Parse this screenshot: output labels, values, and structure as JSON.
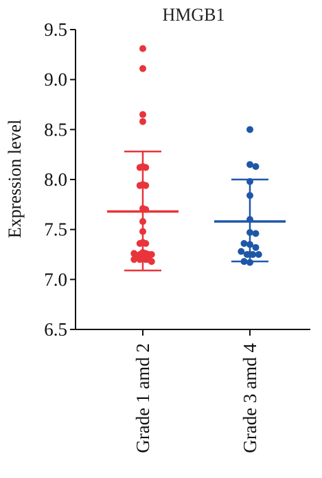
{
  "chart_data": {
    "type": "scatter",
    "title": "HMGB1",
    "xlabel": "",
    "ylabel": "Expression level",
    "ylim": [
      6.5,
      9.5
    ],
    "yticks": [
      "6.5",
      "7.0",
      "7.5",
      "8.0",
      "8.5",
      "9.0",
      "9.5"
    ],
    "categories": [
      "Grade 1 amd 2",
      "Grade 3 amd 4"
    ],
    "grid": false,
    "series": [
      {
        "category": "Grade 1 amd 2",
        "color": "#e8343a",
        "mean": 7.68,
        "sd_upper": 8.28,
        "sd_lower": 7.09,
        "points": [
          {
            "x": 0.0,
            "y": 9.31
          },
          {
            "x": 0.0,
            "y": 9.11
          },
          {
            "x": 0.0,
            "y": 8.65
          },
          {
            "x": 0.0,
            "y": 8.58
          },
          {
            "x": -0.25,
            "y": 8.12
          },
          {
            "x": 0.0,
            "y": 8.13
          },
          {
            "x": 0.25,
            "y": 8.12
          },
          {
            "x": 0.0,
            "y": 7.95
          },
          {
            "x": -0.25,
            "y": 7.94
          },
          {
            "x": 0.25,
            "y": 7.94
          },
          {
            "x": 0.0,
            "y": 7.71
          },
          {
            "x": 0.25,
            "y": 7.7
          },
          {
            "x": 0.0,
            "y": 7.58
          },
          {
            "x": 0.0,
            "y": 7.48
          },
          {
            "x": 0.0,
            "y": 7.37
          },
          {
            "x": -0.25,
            "y": 7.36
          },
          {
            "x": 0.25,
            "y": 7.36
          },
          {
            "x": -0.75,
            "y": 7.26
          },
          {
            "x": -0.5,
            "y": 7.24
          },
          {
            "x": -0.25,
            "y": 7.25
          },
          {
            "x": 0.0,
            "y": 7.27
          },
          {
            "x": 0.25,
            "y": 7.26
          },
          {
            "x": 0.5,
            "y": 7.25
          },
          {
            "x": 0.75,
            "y": 7.25
          },
          {
            "x": -0.75,
            "y": 7.2
          },
          {
            "x": 0.0,
            "y": 7.21
          },
          {
            "x": -0.25,
            "y": 7.2
          },
          {
            "x": 0.25,
            "y": 7.2
          },
          {
            "x": 0.5,
            "y": 7.2
          },
          {
            "x": 0.75,
            "y": 7.18
          }
        ]
      },
      {
        "category": "Grade 3 amd 4",
        "color": "#1f57a8",
        "mean": 7.58,
        "sd_upper": 8.0,
        "sd_lower": 7.18,
        "points": [
          {
            "x": 0.0,
            "y": 8.5
          },
          {
            "x": 0.0,
            "y": 8.15
          },
          {
            "x": 0.5,
            "y": 8.13
          },
          {
            "x": 0.0,
            "y": 7.98
          },
          {
            "x": 0.0,
            "y": 7.84
          },
          {
            "x": 0.0,
            "y": 7.6
          },
          {
            "x": 0.0,
            "y": 7.47
          },
          {
            "x": 0.5,
            "y": 7.46
          },
          {
            "x": -0.5,
            "y": 7.36
          },
          {
            "x": 0.0,
            "y": 7.35
          },
          {
            "x": 0.5,
            "y": 7.32
          },
          {
            "x": -0.75,
            "y": 7.28
          },
          {
            "x": -0.25,
            "y": 7.25
          },
          {
            "x": 0.0,
            "y": 7.25
          },
          {
            "x": 0.25,
            "y": 7.25
          },
          {
            "x": 0.75,
            "y": 7.25
          },
          {
            "x": -0.5,
            "y": 7.18
          },
          {
            "x": 0.0,
            "y": 7.17
          }
        ]
      }
    ]
  }
}
